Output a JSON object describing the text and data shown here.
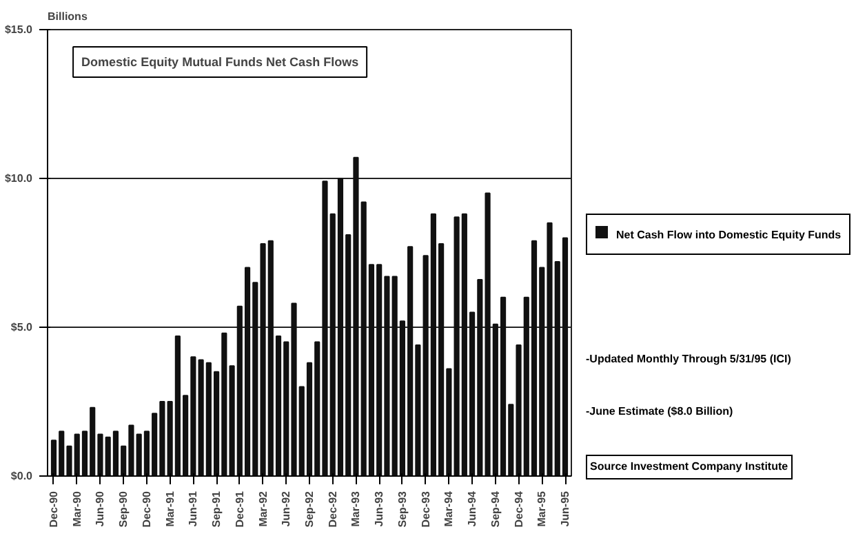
{
  "chart_data": {
    "type": "bar",
    "title": "Domestic Equity Mutual Funds Net Cash Flows",
    "ylabel": "Billions",
    "categories": [
      "Dec-90",
      null,
      null,
      "Mar-90",
      null,
      null,
      "Jun-90",
      null,
      null,
      "Sep-90",
      null,
      null,
      "Dec-90",
      null,
      null,
      "Mar-91",
      null,
      null,
      "Jun-91",
      null,
      null,
      "Sep-91",
      null,
      null,
      "Dec-91",
      null,
      null,
      "Mar-92",
      null,
      null,
      "Jun-92",
      null,
      null,
      "Sep-92",
      null,
      null,
      "Dec-92",
      null,
      null,
      "Mar-93",
      null,
      null,
      "Jun-93",
      null,
      null,
      "Sep-93",
      null,
      null,
      "Dec-93",
      null,
      null,
      "Mar-94",
      null,
      null,
      "Jun-94",
      null,
      null,
      "Sep-94",
      null,
      null,
      "Dec-94",
      null,
      null,
      "Mar-95",
      null,
      null,
      "Jun-95"
    ],
    "series": [
      {
        "name": "Net Cash Flow into Domestic Equity Funds",
        "color": "#111111",
        "values": [
          1.2,
          1.5,
          1.0,
          1.4,
          1.5,
          2.3,
          1.4,
          1.3,
          1.5,
          1.0,
          1.7,
          1.4,
          1.5,
          2.1,
          2.5,
          2.5,
          4.7,
          2.7,
          4.0,
          3.9,
          3.8,
          3.5,
          4.8,
          3.7,
          5.7,
          7.0,
          6.5,
          7.8,
          7.9,
          4.7,
          4.5,
          5.8,
          3.0,
          3.8,
          4.5,
          9.9,
          8.8,
          10.0,
          8.1,
          10.7,
          9.2,
          7.1,
          7.1,
          6.7,
          6.7,
          5.2,
          7.7,
          4.4,
          7.4,
          8.8,
          7.8,
          3.6,
          8.7,
          8.8,
          5.5,
          6.6,
          9.5,
          5.1,
          6.0,
          2.4,
          4.4,
          6.0,
          7.9,
          7.0,
          8.5,
          7.2,
          8.0
        ]
      }
    ],
    "ylim": [
      0,
      15
    ],
    "yticks": [
      {
        "value": 0,
        "label": "$0.0"
      },
      {
        "value": 5,
        "label": "$5.0"
      },
      {
        "value": 10,
        "label": "$10.0"
      },
      {
        "value": 15,
        "label": "$15.0"
      }
    ],
    "grid": "y",
    "legend": "right",
    "annotations": [
      "-Updated Monthly Through 5/31/95 (ICI)",
      "-June Estimate ($8.0 Billion)",
      "Source Investment Company Institute"
    ]
  }
}
